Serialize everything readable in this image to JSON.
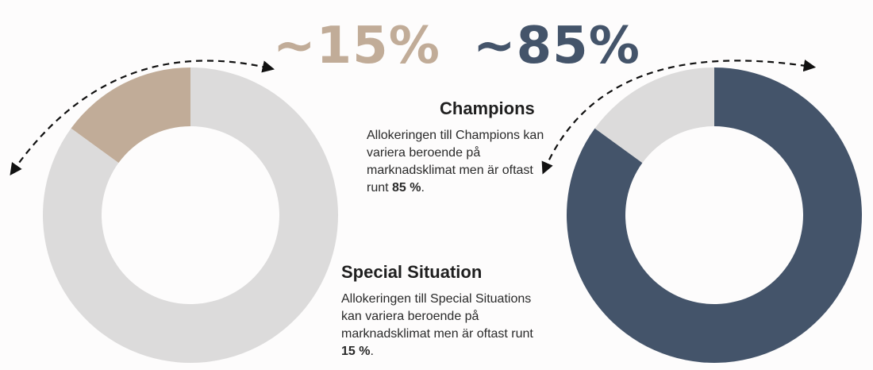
{
  "chart_data": [
    {
      "type": "pie",
      "variant": "donut",
      "big_label": "~15%",
      "slices": [
        {
          "label": "Special Situation",
          "value": 15,
          "color": "#c1ac98"
        },
        {
          "label": "",
          "value": 85,
          "color": "#dcdbdb"
        }
      ]
    },
    {
      "type": "pie",
      "variant": "donut",
      "big_label": "~85%",
      "slices": [
        {
          "label": "Champions",
          "value": 85,
          "color": "#44546a"
        },
        {
          "label": "",
          "value": 15,
          "color": "#dcdbdb"
        }
      ]
    }
  ],
  "colors": {
    "accent_tan": "#c1ac98",
    "accent_navy": "#44546a",
    "track_grey": "#dcdbdb"
  },
  "champions": {
    "heading": "Champions",
    "text_parts": [
      "Allokeringen till Champions kan variera beroende på marknadsklimat men är oftast runt ",
      "85 %",
      "."
    ]
  },
  "special": {
    "heading": "Special Situation",
    "text_parts": [
      "Allokeringen till Special Situations kan variera beroende på marknadsklimat men är oftast runt ",
      "15 %",
      "."
    ]
  },
  "icons": [
    "double-arrow-icon",
    "double-arrow-icon"
  ]
}
